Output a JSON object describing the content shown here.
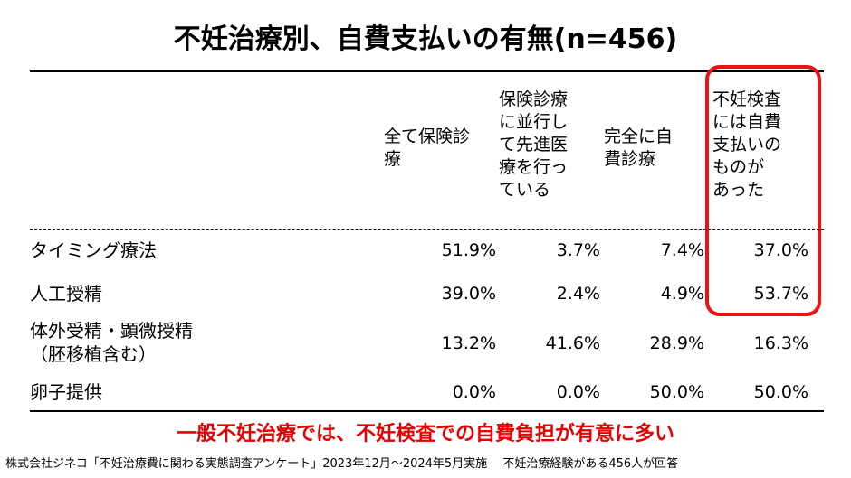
{
  "title": "不妊治療別、自費支払いの有無(n=456)",
  "columns": [
    "全て保険診\n療",
    "保険診療\nに並行し\nて先進医\n療を行っ\nている",
    "完全に自\n費診療",
    "不妊検査\nには自費\n支払いの\nものが\nあった"
  ],
  "rows": [
    {
      "label": "タイミング療法",
      "values": [
        "51.9%",
        "3.7%",
        "7.4%",
        "37.0%"
      ]
    },
    {
      "label": "人工授精",
      "values": [
        "39.0%",
        "2.4%",
        "4.9%",
        "53.7%"
      ]
    },
    {
      "label": "体外受精・顕微授精\n（胚移植含む）",
      "values": [
        "13.2%",
        "41.6%",
        "28.9%",
        "16.3%"
      ]
    },
    {
      "label": "卵子提供",
      "values": [
        "0.0%",
        "0.0%",
        "50.0%",
        "50.0%"
      ]
    }
  ],
  "conclusion": "一般不妊治療では、不妊検査での自費負担が有意に多い",
  "source": "株式会社ジネコ「不妊治療費に関わる実態調査アンケート」2023年12月～2024年5月実施　 不妊治療経験がある456人が回答",
  "colors": {
    "highlight": "#ee1111",
    "conclusion": "#e60000"
  }
}
